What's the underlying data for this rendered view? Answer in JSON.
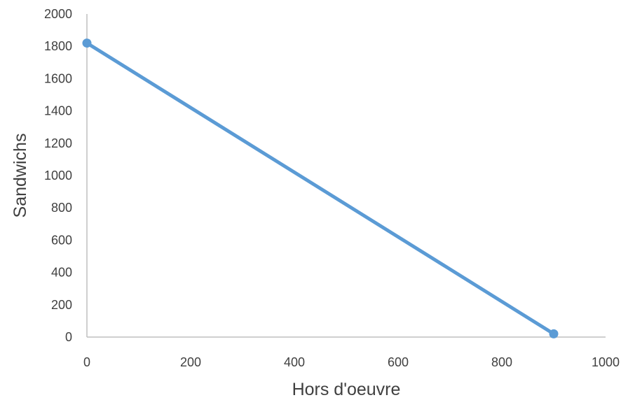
{
  "chart_data": {
    "type": "line",
    "title": "",
    "xlabel": "Hors d'oeuvre",
    "ylabel": "Sandwichs",
    "xlim": [
      0,
      1000
    ],
    "ylim": [
      0,
      2000
    ],
    "x_ticks": [
      "0",
      "200",
      "400",
      "600",
      "800",
      "1000"
    ],
    "y_ticks": [
      "0",
      "200",
      "400",
      "600",
      "800",
      "1000",
      "1200",
      "1400",
      "1600",
      "1800",
      "2000"
    ],
    "grid": false,
    "legend": "none",
    "series": [
      {
        "color": "#5b9bd5",
        "points": [
          {
            "x": 0,
            "y": 1820
          },
          {
            "x": 900,
            "y": 20
          }
        ]
      }
    ]
  }
}
